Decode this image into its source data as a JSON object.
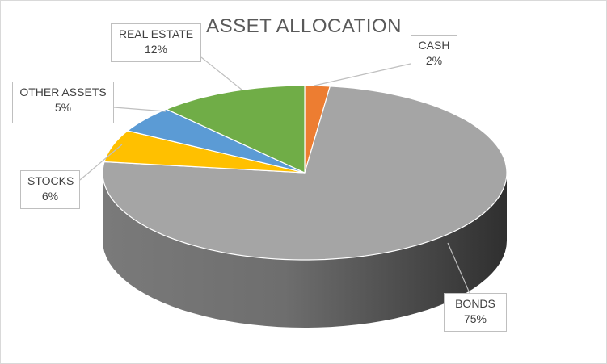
{
  "chart_data": {
    "type": "pie",
    "style": "3d",
    "title": "ASSET ALLOCATION",
    "start_angle_deg": 0,
    "direction": "clockwise",
    "legend": "none",
    "data_labels": "callouts with category name and percentage",
    "categories": [
      "CASH",
      "BONDS",
      "STOCKS",
      "OTHER ASSETS",
      "REAL ESTATE"
    ],
    "values": [
      2,
      75,
      6,
      5,
      12
    ],
    "labels": [
      "2%",
      "75%",
      "6%",
      "5%",
      "12%"
    ],
    "colors": [
      "#ed7d31",
      "#a5a5a5",
      "#ffc000",
      "#5b9bd5",
      "#70ad47"
    ]
  }
}
